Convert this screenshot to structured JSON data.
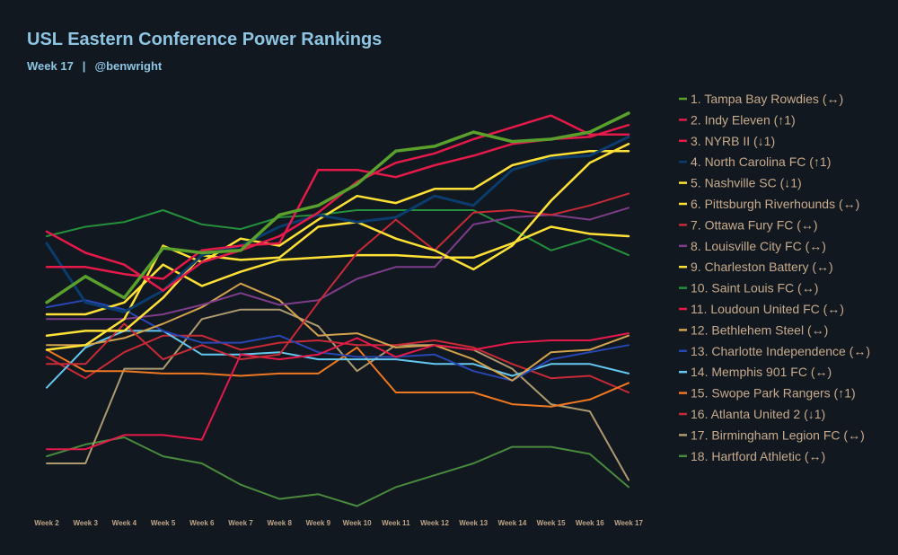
{
  "header": {
    "title": "USL Eastern Conference Power Rankings",
    "week": "Week 17",
    "separator": "|",
    "author": "@benwright"
  },
  "colors": {
    "background": "#111820",
    "title": "#8ec5e3",
    "label": "#c8aa8c"
  },
  "chart_data": {
    "type": "line",
    "title": "USL Eastern Conference Power Rankings",
    "x": [
      "Week 2",
      "Week 3",
      "Week 4",
      "Week 5",
      "Week 6",
      "Week 7",
      "Week 8",
      "Week 9",
      "Week 10",
      "Week 11",
      "Week 12",
      "Week 13",
      "Week 14",
      "Week 15",
      "Week 16",
      "Week 17"
    ],
    "ylabel": "",
    "y_inverted": true,
    "ylim": [
      1,
      18
    ],
    "grid": false,
    "legend": "right",
    "series": [
      {
        "name": "1. Tampa Bay Rowdies (↔)",
        "color": "#5aa02c",
        "width": 3.5,
        "values": [
          9,
          7.9,
          8.8,
          6.7,
          6.9,
          6.8,
          5.3,
          4.9,
          4,
          2.6,
          2.4,
          1.8,
          2.2,
          2.1,
          1.8,
          1
        ]
      },
      {
        "name": "2. Indy Eleven (↑1)",
        "color": "#e6194b",
        "width": 2.5,
        "values": [
          6,
          6.9,
          7.4,
          8.5,
          7.3,
          6.8,
          6.2,
          5.2,
          3.9,
          3.1,
          2.7,
          2.1,
          1.6,
          1.1,
          1.9,
          1.9
        ]
      },
      {
        "name": "3. NYRB II (↓1)",
        "color": "#e6194b",
        "width": 2.5,
        "values": [
          7.5,
          7.5,
          7.8,
          8,
          6.8,
          6.6,
          6.5,
          3.4,
          3.4,
          3.7,
          3.2,
          2.8,
          2.3,
          2.1,
          2,
          1.5
        ]
      },
      {
        "name": "4. North Carolina FC (↑1)",
        "color": "#0a3d6e",
        "width": 3,
        "values": [
          6.5,
          9,
          9.4,
          8.5,
          7,
          6.6,
          5.8,
          5.3,
          5.6,
          5.4,
          4.5,
          4.9,
          3.4,
          2.9,
          2.8,
          2
        ]
      },
      {
        "name": "5. Nashville SC (↓1)",
        "color": "#ffe135",
        "width": 2.5,
        "values": [
          11,
          10.8,
          9.7,
          6.6,
          7.3,
          6.3,
          6.6,
          5.5,
          4.5,
          4.8,
          4.2,
          4.2,
          3.2,
          2.8,
          2.6,
          2.6
        ]
      },
      {
        "name": "6. Pittsburgh Riverhounds (↔)",
        "color": "#ffe135",
        "width": 2.5,
        "values": [
          10.4,
          10.2,
          10.2,
          8.8,
          7,
          7.2,
          7.1,
          5.8,
          5.6,
          6.3,
          6.8,
          7.6,
          6.6,
          4.7,
          3.1,
          2.3
        ]
      },
      {
        "name": "7. Ottawa Fury FC (↔)",
        "color": "#c82a36",
        "width": 2,
        "values": [
          11.6,
          11.6,
          9.9,
          11.4,
          10.8,
          11.4,
          11.2,
          9,
          6.9,
          5.5,
          6.8,
          5.2,
          5.1,
          5.3,
          4.9,
          4.4
        ]
      },
      {
        "name": "8. Louisville City FC (↔)",
        "color": "#7e3c8a",
        "width": 2,
        "values": [
          9.7,
          9.7,
          9.7,
          9.5,
          9.1,
          8.6,
          9.1,
          8.9,
          8,
          7.5,
          7.5,
          5.7,
          5.4,
          5.3,
          5.5,
          5
        ]
      },
      {
        "name": "9. Charleston Battery (↔)",
        "color": "#ffe135",
        "width": 2.5,
        "values": [
          9.5,
          9.5,
          9,
          7.4,
          8.3,
          7.7,
          7.2,
          7.1,
          7,
          7,
          7.1,
          7.1,
          6.5,
          5.8,
          6.1,
          6.2
        ]
      },
      {
        "name": "10. Saint Louis FC (↔)",
        "color": "#24903c",
        "width": 2,
        "values": [
          6.2,
          5.8,
          5.6,
          5.1,
          5.7,
          5.9,
          5.4,
          5.3,
          5.1,
          5.1,
          5.1,
          5.1,
          5.9,
          6.8,
          6.3,
          7
        ]
      },
      {
        "name": "11. Loudoun United FC (↔)",
        "color": "#e6194b",
        "width": 2,
        "values": [
          15.2,
          15.2,
          14.6,
          14.6,
          14.8,
          11.2,
          11.4,
          11.2,
          10.5,
          11.3,
          10.8,
          11,
          10.7,
          10.6,
          10.6,
          10.3
        ]
      },
      {
        "name": "12. Bethlehem Steel (↔)",
        "color": "#d4a24c",
        "width": 2,
        "values": [
          10.8,
          10.8,
          10.5,
          9.9,
          9.2,
          8.2,
          8.9,
          10.4,
          10.3,
          10.9,
          10.8,
          11.4,
          12.3,
          11.1,
          11,
          10.4
        ]
      },
      {
        "name": "13. Charlotte Independence (↔)",
        "color": "#2846b4",
        "width": 2,
        "values": [
          9.2,
          8.9,
          9.3,
          10.2,
          10.7,
          10.7,
          10.4,
          11.1,
          11.3,
          11.3,
          11.2,
          11.9,
          12.3,
          11.4,
          11.1,
          10.8
        ]
      },
      {
        "name": "14. Memphis 901 FC (↔)",
        "color": "#64c8f0",
        "width": 2,
        "values": [
          12.6,
          10.9,
          10.2,
          10.2,
          11.2,
          11.2,
          11.1,
          11.4,
          11.4,
          11.4,
          11.6,
          11.6,
          12.1,
          11.6,
          11.6,
          12
        ]
      },
      {
        "name": "15. Swope Park Rangers (↑1)",
        "color": "#f07820",
        "width": 2,
        "values": [
          11,
          11.9,
          11.9,
          12,
          12,
          12.1,
          12,
          12,
          10.9,
          12.8,
          12.8,
          12.8,
          13.3,
          13.4,
          13.1,
          12.4
        ]
      },
      {
        "name": "16. Atlanta United 2 (↓1)",
        "color": "#c82a36",
        "width": 2,
        "values": [
          11.3,
          12.2,
          11.1,
          10.4,
          10.4,
          11,
          10.7,
          10.6,
          10.8,
          10.8,
          10.6,
          10.9,
          11.6,
          12.2,
          12.1,
          12.8
        ]
      },
      {
        "name": "17. Birmingham Legion FC (↔)",
        "color": "#ad9a6f",
        "width": 2,
        "values": [
          15.8,
          15.8,
          11.8,
          11.8,
          9.7,
          9.3,
          9.3,
          10,
          11.9,
          10.8,
          10.8,
          11,
          11.8,
          13.3,
          13.6,
          16.5
        ]
      },
      {
        "name": "18. Hartford Athletic (↔)",
        "color": "#4a8a3c",
        "width": 2,
        "values": [
          15.5,
          15,
          14.7,
          15.5,
          15.8,
          16.7,
          17.3,
          17.1,
          17.6,
          16.8,
          16.3,
          15.8,
          15.1,
          15.1,
          15.4,
          16.8
        ]
      }
    ]
  }
}
